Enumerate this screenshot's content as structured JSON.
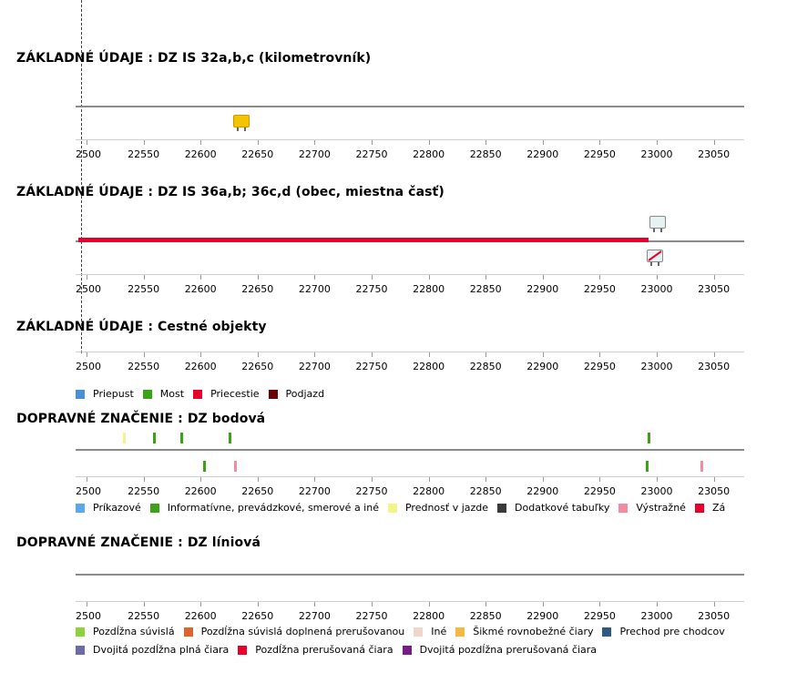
{
  "axis_ticks": [
    "2500",
    "22550",
    "22600",
    "22650",
    "22700",
    "22750",
    "22800",
    "22850",
    "22900",
    "22950",
    "23000",
    "23050"
  ],
  "sections": [
    {
      "title": "ZÁKLADNÉ ÚDAJE : DZ IS 32a,b,c (kilometrovník)"
    },
    {
      "title": "ZÁKLADNÉ ÚDAJE : DZ IS 36a,b; 36c,d (obec, miestna časť)"
    },
    {
      "title": "ZÁKLADNÉ ÚDAJE : Cestné objekty"
    },
    {
      "title": "DOPRAVNÉ ZNAČENIE : DZ bodová"
    },
    {
      "title": "DOPRAVNÉ ZNAČENIE : DZ líniová"
    }
  ],
  "legend_objects": [
    {
      "label": "Priepust",
      "color": "#4a90d9"
    },
    {
      "label": "Most",
      "color": "#3aa318"
    },
    {
      "label": "Priecestie",
      "color": "#e8002a"
    },
    {
      "label": "Podjazd",
      "color": "#6b0000"
    }
  ],
  "legend_point": [
    {
      "label": "Príkazové",
      "color": "#5aa6ef"
    },
    {
      "label": "Informatívne, prevádzkové, smerové a iné",
      "color": "#3aa318"
    },
    {
      "label": "Prednosť v jazde",
      "color": "#f1f58a"
    },
    {
      "label": "Dodatkové tabuľky",
      "color": "#3a3a3a"
    },
    {
      "label": "Výstražné",
      "color": "#f58ba0"
    },
    {
      "label": "Zá",
      "color": "#e8002a"
    }
  ],
  "legend_linear": [
    [
      {
        "label": "Pozdĺžna súvislá",
        "color": "#8cd43a"
      },
      {
        "label": "Pozdĺžna súvislá doplnená prerušovanou",
        "color": "#e0632a"
      },
      {
        "label": "Iné",
        "color": "#eed7c8"
      },
      {
        "label": "Šikmé rovnobežné čiary",
        "color": "#f5b840"
      },
      {
        "label": "Prechod pre chodcov",
        "color": "#2e5a8a"
      }
    ],
    [
      {
        "label": "Dvojitá pozdĺžna plná čiara",
        "color": "#6c6aa8"
      },
      {
        "label": "Pozdĺžna prerušovaná čiara",
        "color": "#e8002a"
      },
      {
        "label": "Dvojitá pozdĺžna prerušovaná čiara",
        "color": "#7a1a8a"
      }
    ]
  ],
  "kilometer_signs": [
    {
      "km": 22635,
      "icon": "kilometer-sign-icon",
      "color": "#f5c400"
    }
  ],
  "town_signs": [
    {
      "km": 23000,
      "side": "top",
      "icon": "town-entry-sign-icon"
    },
    {
      "km": 22998,
      "side": "bottom",
      "icon": "town-exit-sign-icon"
    }
  ],
  "town_segment": {
    "from_km": 22493,
    "to_km": 22993,
    "color": "#e8002a"
  },
  "point_signs_top": [
    {
      "km": 22533,
      "color": "#f1f58a"
    },
    {
      "km": 22559,
      "color": "#3aa318"
    },
    {
      "km": 22583,
      "color": "#3aa318"
    },
    {
      "km": 22625,
      "color": "#3aa318"
    },
    {
      "km": 22993,
      "color": "#3aa318"
    }
  ],
  "point_signs_bottom": [
    {
      "km": 22603,
      "color": "#3aa318"
    },
    {
      "km": 22630,
      "color": "#f58ba0"
    },
    {
      "km": 22991,
      "color": "#3aa318"
    },
    {
      "km": 23039,
      "color": "#f58ba0"
    }
  ]
}
